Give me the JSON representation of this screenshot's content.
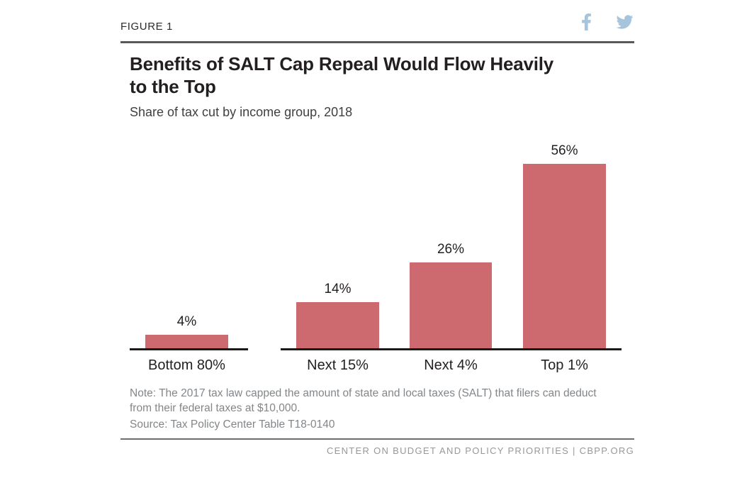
{
  "figure_label": "FIGURE 1",
  "header": {
    "social_icons": [
      "facebook-icon",
      "twitter-icon"
    ]
  },
  "title": "Benefits of SALT Cap Repeal Would Flow Heavily to the Top",
  "subtitle": "Share of tax cut by income group, 2018",
  "chart_data": {
    "type": "bar",
    "title": "Benefits of SALT Cap Repeal Would Flow Heavily to the Top",
    "subtitle": "Share of tax cut by income group, 2018",
    "categories": [
      "Bottom 80%",
      "Next 15%",
      "Next 4%",
      "Top 1%"
    ],
    "values": [
      4,
      14,
      26,
      56
    ],
    "value_labels": [
      "4%",
      "14%",
      "26%",
      "56%"
    ],
    "xlabel": "",
    "ylabel": "",
    "ylim": [
      0,
      60
    ],
    "unit": "percent",
    "grid": false,
    "legend": false,
    "data_labels_position": "above-bars",
    "bar_color": "#cd6a70",
    "axis_note": "x-axis drawn as two segments: one under Bottom 80%, one under the remaining three groups"
  },
  "note": "Note: The 2017 tax law capped the amount of state and local taxes (SALT) that filers can deduct from their federal taxes at $10,000.",
  "source": "Source: Tax Policy Center Table T18-0140",
  "footer": {
    "text": "CENTER ON BUDGET AND POLICY PRIORITIES | CBPP.ORG"
  },
  "colors": {
    "bar": "#cd6a70",
    "axis": "#1a1a1a",
    "top_rule": "#58595b",
    "bottom_rule": "#6d6e71",
    "social_icon_blue": "#a7c4df",
    "title_text": "#231f20",
    "muted_text": "#838689",
    "footer_text": "#96989b"
  }
}
